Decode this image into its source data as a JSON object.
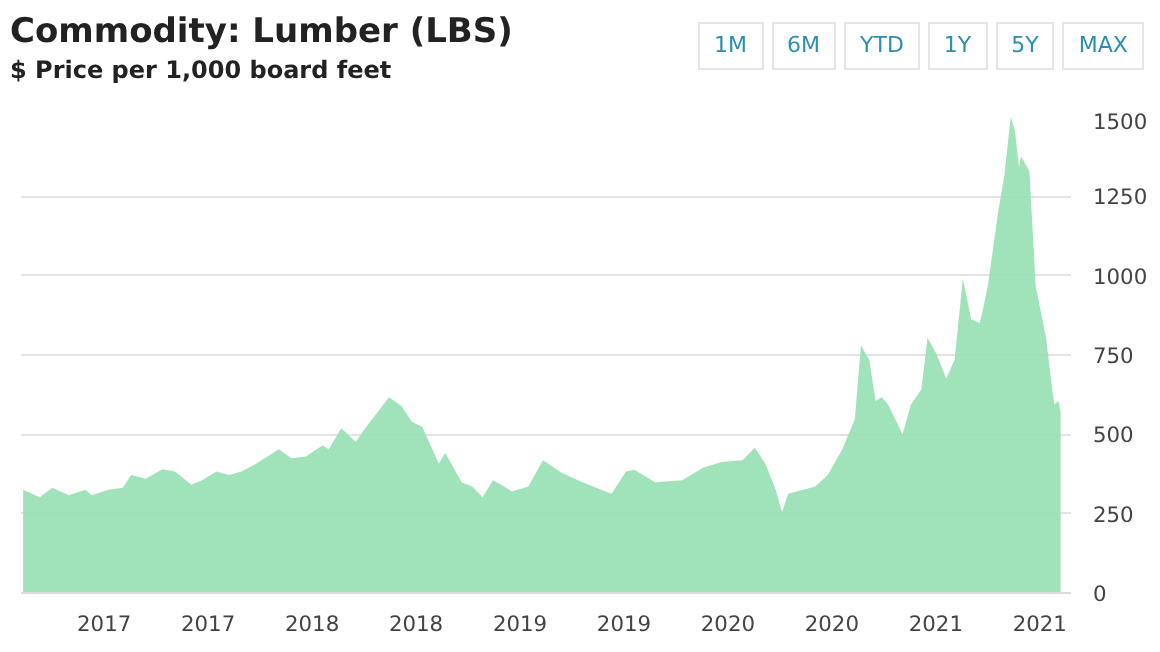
{
  "chart_data": {
    "type": "area",
    "title": "Commodity: Lumber (LBS)",
    "subtitle": "$ Price per 1,000 board feet",
    "annotations": [
      "1M",
      "6M",
      "YTD",
      "1Y",
      "5Y",
      "MAX"
    ],
    "x": [
      2016.61,
      2016.69,
      2016.75,
      2016.83,
      2016.91,
      2016.94,
      2017.02,
      2017.09,
      2017.13,
      2017.2,
      2017.28,
      2017.34,
      2017.42,
      2017.47,
      2017.54,
      2017.6,
      2017.66,
      2017.73,
      2017.84,
      2017.9,
      2017.97,
      2018.05,
      2018.08,
      2018.14,
      2018.21,
      2018.26,
      2018.37,
      2018.43,
      2018.48,
      2018.53,
      2018.61,
      2018.64,
      2018.72,
      2018.77,
      2018.82,
      2018.87,
      2018.91,
      2018.96,
      2019.04,
      2019.11,
      2019.2,
      2019.3,
      2019.39,
      2019.44,
      2019.51,
      2019.55,
      2019.65,
      2019.78,
      2019.88,
      2019.97,
      2020.07,
      2020.13,
      2020.18,
      2020.23,
      2020.26,
      2020.29,
      2020.42,
      2020.48,
      2020.55,
      2020.61,
      2020.64,
      2020.68,
      2020.71,
      2020.74,
      2020.77,
      2020.84,
      2020.88,
      2020.93,
      2020.96,
      2021.0,
      2021.05,
      2021.09,
      2021.13,
      2021.17,
      2021.21,
      2021.22,
      2021.25,
      2021.3,
      2021.33,
      2021.36,
      2021.38,
      2021.4,
      2021.41,
      2021.45,
      2021.48,
      2021.53,
      2021.56,
      2021.57,
      2021.59,
      2021.6
    ],
    "series": [
      {
        "color": "#96e0b2",
        "values": [
          325,
          302,
          332,
          308,
          325,
          308,
          325,
          332,
          372,
          360,
          390,
          383,
          341,
          355,
          383,
          372,
          383,
          407,
          453,
          425,
          430,
          465,
          453,
          519,
          477,
          523,
          617,
          589,
          540,
          523,
          407,
          442,
          348,
          336,
          302,
          355,
          341,
          320,
          336,
          418,
          379,
          349,
          325,
          313,
          383,
          388,
          349,
          355,
          395,
          413,
          418,
          458,
          407,
          325,
          255,
          313,
          336,
          372,
          453,
          547,
          780,
          734,
          605,
          617,
          594,
          500,
          594,
          641,
          804,
          757,
          676,
          734,
          991,
          863,
          851,
          874,
          968,
          1202,
          1318,
          1500,
          1458,
          1341,
          1376,
          1329,
          968,
          804,
          641,
          594,
          605,
          570
        ]
      }
    ],
    "xlim": [
      2016.6,
      2021.65
    ],
    "ylim": [
      0,
      1500
    ],
    "xticks": [
      {
        "value": 2017,
        "label": "2017"
      },
      {
        "value": 2017.5,
        "label": "2017"
      },
      {
        "value": 2018,
        "label": "2018"
      },
      {
        "value": 2018.5,
        "label": "2018"
      },
      {
        "value": 2019,
        "label": "2019"
      },
      {
        "value": 2019.5,
        "label": "2019"
      },
      {
        "value": 2020,
        "label": "2020"
      },
      {
        "value": 2020.5,
        "label": "2020"
      },
      {
        "value": 2021,
        "label": "2021"
      },
      {
        "value": 2021.5,
        "label": "2021"
      }
    ],
    "yticks": [
      0,
      250,
      500,
      750,
      1000,
      1250,
      1500
    ],
    "grid": "y"
  }
}
